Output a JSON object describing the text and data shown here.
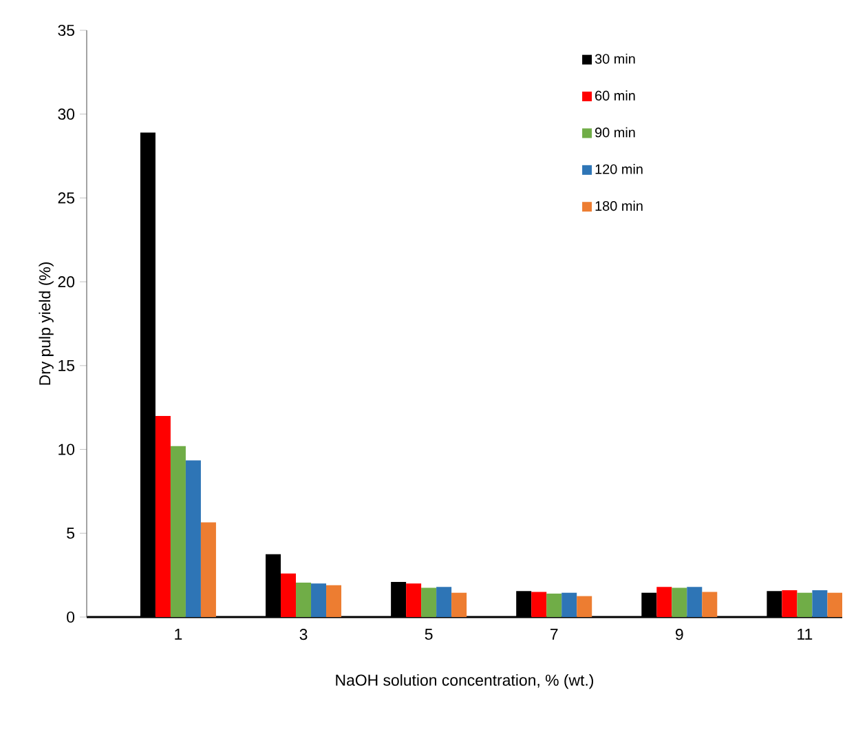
{
  "chart_data": {
    "type": "bar",
    "xlabel": "NaOH solution concentration, % (wt.)",
    "ylabel": "Dry pulp yield (%)",
    "categories": [
      "1",
      "3",
      "5",
      "7",
      "9",
      "11"
    ],
    "series": [
      {
        "name": "30 min",
        "color": "#000000",
        "values": [
          28.9,
          3.75,
          2.1,
          1.55,
          1.45,
          1.55
        ]
      },
      {
        "name": "60 min",
        "color": "#ff0000",
        "values": [
          12.0,
          2.6,
          2.0,
          1.5,
          1.8,
          1.6
        ]
      },
      {
        "name": "90 min",
        "color": "#70ad47",
        "values": [
          10.2,
          2.05,
          1.75,
          1.4,
          1.75,
          1.45
        ]
      },
      {
        "name": "120 min",
        "color": "#2e75b6",
        "values": [
          9.35,
          2.0,
          1.8,
          1.45,
          1.8,
          1.6
        ]
      },
      {
        "name": "180 min",
        "color": "#ed7d31",
        "values": [
          5.65,
          1.9,
          1.45,
          1.25,
          1.5,
          1.45
        ]
      }
    ],
    "ylim": [
      0,
      35
    ],
    "yticks": [
      0,
      5,
      10,
      15,
      20,
      25,
      30,
      35
    ],
    "grid": false,
    "legend": "top right"
  }
}
